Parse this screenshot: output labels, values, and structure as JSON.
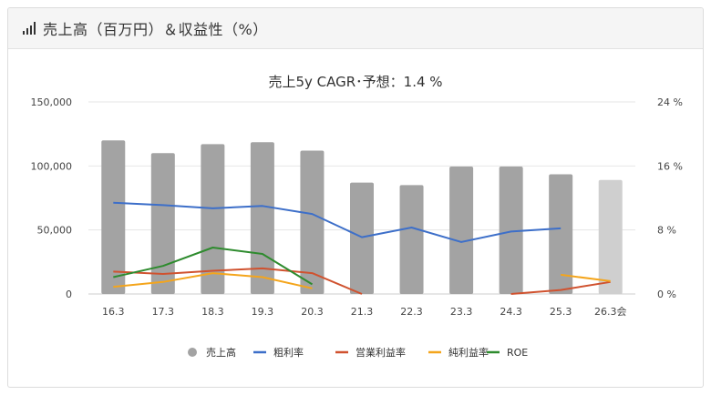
{
  "header": {
    "title": "売上高（百万円）＆収益性（%）",
    "icon": "bar-chart-icon"
  },
  "chart_data": {
    "type": "bar",
    "title": "売上5y CAGR･予想：1.4 %",
    "categories": [
      "16.3",
      "17.3",
      "18.3",
      "19.3",
      "20.3",
      "21.3",
      "22.3",
      "23.3",
      "24.3",
      "25.3",
      "26.3会"
    ],
    "y_left": {
      "ticks": [
        "0",
        "50,000",
        "100,000",
        "150,000"
      ],
      "range": [
        0,
        150000
      ]
    },
    "y_right": {
      "ticks": [
        "0 %",
        "8 %",
        "16 %",
        "24 %"
      ],
      "range": [
        0,
        24
      ]
    },
    "series": [
      {
        "name": "売上高",
        "kind": "bar",
        "axis": "left",
        "color": "#a3a3a3",
        "forecast_color": "#cfcfcf",
        "values": [
          120000,
          110000,
          117000,
          118500,
          112000,
          87000,
          85000,
          99500,
          99500,
          93500,
          89000
        ],
        "forecast": [
          false,
          false,
          false,
          false,
          false,
          false,
          false,
          false,
          false,
          false,
          true
        ]
      },
      {
        "name": "粗利率",
        "kind": "line",
        "axis": "right",
        "color": "#3d6fc9",
        "values": [
          11.4,
          11.1,
          10.7,
          11.0,
          10.0,
          7.1,
          8.3,
          6.5,
          7.8,
          8.2,
          null
        ]
      },
      {
        "name": "営業利益率",
        "kind": "line",
        "axis": "right",
        "color": "#d0522f",
        "values": [
          2.8,
          2.5,
          2.9,
          3.2,
          2.6,
          -0.2,
          null,
          null,
          -0.1,
          0.5,
          1.5
        ]
      },
      {
        "name": "純利益率",
        "kind": "line",
        "axis": "right",
        "color": "#f4a51c",
        "values": [
          0.9,
          1.5,
          2.6,
          2.1,
          0.7,
          null,
          null,
          null,
          null,
          2.4,
          1.6
        ]
      },
      {
        "name": "ROE",
        "kind": "line",
        "axis": "right",
        "color": "#2e8b2e",
        "values": [
          2.1,
          3.5,
          5.8,
          5.0,
          1.2,
          null,
          null,
          null,
          null,
          null,
          null
        ]
      }
    ],
    "legend_position": "bottom",
    "grid": true
  }
}
